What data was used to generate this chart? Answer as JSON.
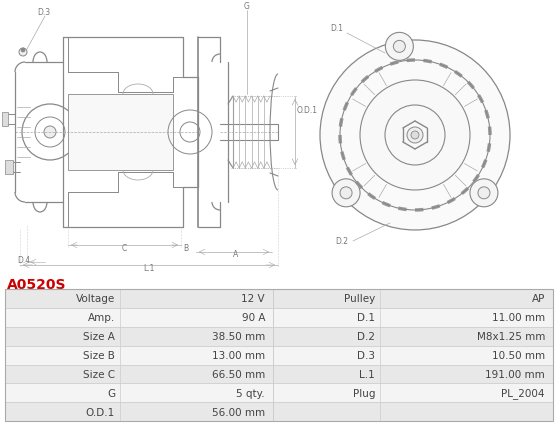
{
  "title": "A0520S",
  "title_color": "#cc0000",
  "bg_color": "#ffffff",
  "table_rows": [
    [
      "Voltage",
      "12 V",
      "Pulley",
      "AP"
    ],
    [
      "Amp.",
      "90 A",
      "D.1",
      "11.00 mm"
    ],
    [
      "Size A",
      "38.50 mm",
      "D.2",
      "M8x1.25 mm"
    ],
    [
      "Size B",
      "13.00 mm",
      "D.3",
      "10.50 mm"
    ],
    [
      "Size C",
      "66.50 mm",
      "L.1",
      "191.00 mm"
    ],
    [
      "G",
      "5 qty.",
      "Plug",
      "PL_2004"
    ],
    [
      "O.D.1",
      "56.00 mm",
      "",
      ""
    ]
  ],
  "gray": "#888888",
  "lgray": "#aaaaaa",
  "dgray": "#555555",
  "border_color": "#cccccc",
  "row_bg_a": "#e8e8e8",
  "row_bg_b": "#f4f4f4",
  "font_size": 7.5
}
